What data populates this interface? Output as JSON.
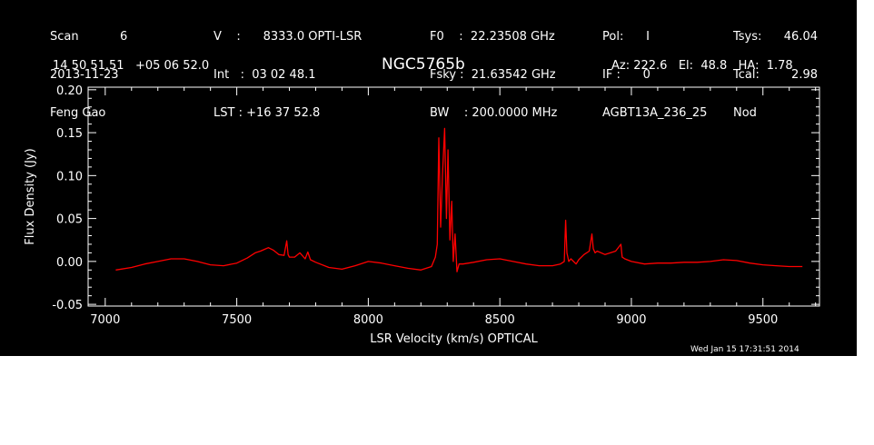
{
  "header": {
    "col1": [
      "Scan           6",
      "2013-11-23",
      "Feng Gao"
    ],
    "col2": [
      "V    :      8333.0 OPTI-LSR",
      "Int   :  03 02 48.1",
      "LST : +16 37 52.8"
    ],
    "col3": [
      "F0    :  22.23508 GHz",
      "Fsky :  21.63542 GHz",
      "BW    : 200.0000 MHz"
    ],
    "col4": [
      "Pol:      I",
      "IF :      0",
      "AGBT13A_236_25"
    ],
    "col5": [
      "Tsys:",
      "Tcal:",
      "Nod"
    ],
    "col6": [
      "46.04",
      "2.98",
      ""
    ],
    "coords": "14 50 51.51   +05 06 52.0",
    "source": "NGC5765b",
    "pointing": "Az: 222.6   El:  48.8   HA:  1.78"
  },
  "timestamp": "Wed Jan 15 17:31:51 2014",
  "colors": {
    "background": "#000000",
    "axes": "#ffffff",
    "spectrum": "#ff0000"
  },
  "chart_data": {
    "type": "line",
    "xlabel": "LSR Velocity (km/s) OPTICAL",
    "ylabel": "Flux Density (Jy)",
    "xlim": [
      6935,
      9715
    ],
    "ylim": [
      -0.052,
      0.203
    ],
    "xticks": [
      7000,
      7500,
      8000,
      8500,
      9000,
      9500
    ],
    "xtick_labels": [
      "7000",
      "7500",
      "8000",
      "8500",
      "9000",
      "9500"
    ],
    "yticks": [
      -0.05,
      0.0,
      0.05,
      0.1,
      0.15,
      0.2
    ],
    "ytick_labels": [
      "-0.05",
      "0.00",
      "0.05",
      "0.10",
      "0.15",
      "0.20"
    ],
    "grid": false,
    "series": [
      {
        "color": "#ff0000",
        "x": [
          7040,
          7100,
          7150,
          7200,
          7250,
          7300,
          7350,
          7400,
          7450,
          7500,
          7540,
          7570,
          7590,
          7605,
          7620,
          7640,
          7660,
          7680,
          7690,
          7695,
          7700,
          7720,
          7740,
          7760,
          7770,
          7780,
          7800,
          7850,
          7900,
          7950,
          8000,
          8050,
          8100,
          8150,
          8200,
          8240,
          8255,
          8262,
          8268,
          8275,
          8282,
          8290,
          8297,
          8303,
          8310,
          8317,
          8323,
          8330,
          8337,
          8345,
          8360,
          8400,
          8450,
          8500,
          8550,
          8600,
          8650,
          8700,
          8730,
          8745,
          8750,
          8755,
          8762,
          8770,
          8790,
          8800,
          8820,
          8840,
          8850,
          8855,
          8862,
          8870,
          8900,
          8940,
          8960,
          8965,
          8975,
          9000,
          9050,
          9100,
          9150,
          9200,
          9250,
          9300,
          9350,
          9400,
          9450,
          9500,
          9550,
          9600,
          9650
        ],
        "y": [
          -0.01,
          -0.007,
          -0.003,
          0.0,
          0.003,
          0.003,
          0.0,
          -0.004,
          -0.005,
          -0.002,
          0.004,
          0.01,
          0.012,
          0.014,
          0.016,
          0.013,
          0.008,
          0.007,
          0.024,
          0.008,
          0.005,
          0.005,
          0.01,
          0.003,
          0.011,
          0.002,
          -0.001,
          -0.007,
          -0.009,
          -0.005,
          0.0,
          -0.002,
          -0.005,
          -0.008,
          -0.01,
          -0.006,
          0.005,
          0.02,
          0.144,
          0.04,
          0.1,
          0.155,
          0.05,
          0.13,
          0.025,
          0.07,
          0.0,
          0.032,
          -0.012,
          -0.003,
          -0.003,
          -0.001,
          0.002,
          0.003,
          0.0,
          -0.003,
          -0.005,
          -0.005,
          -0.003,
          0.0,
          0.048,
          0.01,
          0.0,
          0.003,
          -0.003,
          0.002,
          0.008,
          0.012,
          0.032,
          0.015,
          0.01,
          0.012,
          0.008,
          0.012,
          0.02,
          0.005,
          0.003,
          0.0,
          -0.003,
          -0.002,
          -0.002,
          -0.001,
          -0.001,
          0.0,
          0.002,
          0.001,
          -0.002,
          -0.004,
          -0.005,
          -0.006,
          -0.006
        ]
      }
    ]
  }
}
